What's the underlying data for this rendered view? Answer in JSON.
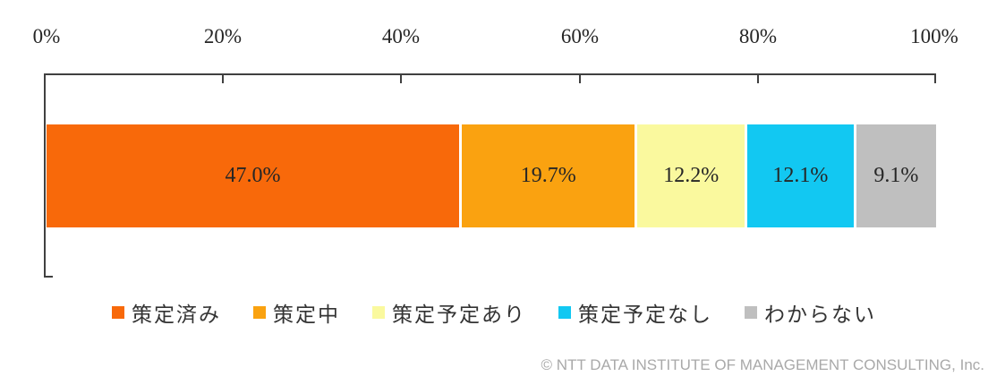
{
  "chart_data": {
    "type": "bar",
    "stacked": true,
    "orientation": "horizontal",
    "title": "",
    "segments": [
      {
        "label": "策定済み",
        "value": 47.0,
        "display": "47.0%",
        "color": "#F8690A"
      },
      {
        "label": "策定中",
        "value": 19.7,
        "display": "19.7%",
        "color": "#FAA210"
      },
      {
        "label": "策定予定あり",
        "value": 12.2,
        "display": "12.2%",
        "color": "#FAF99E"
      },
      {
        "label": "策定予定なし",
        "value": 12.1,
        "display": "12.1%",
        "color": "#12C8F2"
      },
      {
        "label": "わからない",
        "value": 9.1,
        "display": "9.1%",
        "color": "#BFBFBF"
      }
    ],
    "x_axis": {
      "range": [
        0,
        100
      ],
      "ticks": [
        "0%",
        "20%",
        "40%",
        "60%",
        "80%",
        "100%"
      ]
    },
    "legend_position": "bottom",
    "grid": false
  },
  "footer": {
    "copyright": "© NTT DATA INSTITUTE OF MANAGEMENT CONSULTING, Inc."
  }
}
